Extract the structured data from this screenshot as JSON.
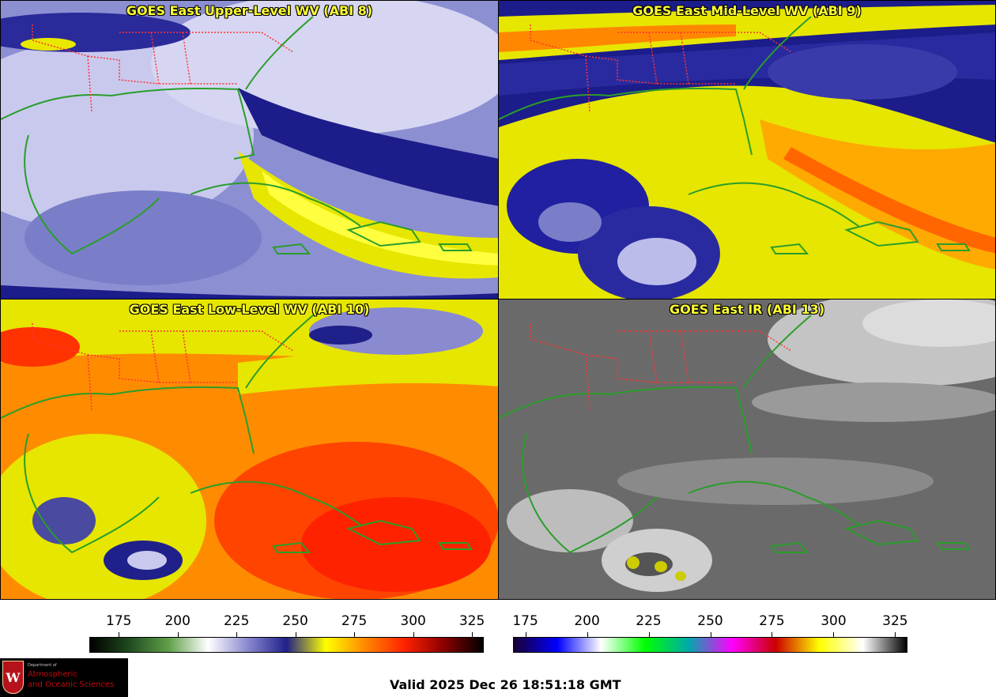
{
  "panels": [
    {
      "id": "p8",
      "title": "GOES East Upper-Level WV (ABI 8)",
      "colormap": "wv"
    },
    {
      "id": "p9",
      "title": "GOES East Mid-Level WV (ABI 9)",
      "colormap": "wv"
    },
    {
      "id": "p10",
      "title": "GOES East Low-Level WV (ABI 10)",
      "colormap": "wv"
    },
    {
      "id": "p13",
      "title": "GOES East IR (ABI 13)",
      "colormap": "ir"
    }
  ],
  "colorbars": {
    "wv": {
      "ticks": [
        "175",
        "200",
        "225",
        "250",
        "275",
        "300",
        "325"
      ],
      "range": [
        162.5,
        330
      ]
    },
    "ir": {
      "ticks": [
        "175",
        "200",
        "225",
        "250",
        "275",
        "300",
        "325"
      ],
      "range": [
        170,
        330
      ]
    }
  },
  "colors": {
    "state_borders": "#ff3333",
    "coastlines": "#2a9d2a",
    "title": "#ffff33",
    "wv_stops": [
      "#000000",
      "#1f4a1f",
      "#5fa04a",
      "#ffffff",
      "#8a8ad0",
      "#20208a",
      "#ffff00",
      "#ff8800",
      "#ff2200",
      "#8b0000",
      "#000000"
    ],
    "ir_stops": [
      "#1a0033",
      "#0000ff",
      "#ffffff",
      "#00ff00",
      "#00aaaa",
      "#ff00ff",
      "#cc0000",
      "#ffff00",
      "#ffffff",
      "#000000"
    ]
  },
  "footer": {
    "valid_time": "Valid 2025 Dec 26 18:51:18 GMT"
  },
  "logo": {
    "department": "Department of",
    "line1": "Atmospheric",
    "line2": "and Oceanic Sciences",
    "crest_letter": "W"
  }
}
